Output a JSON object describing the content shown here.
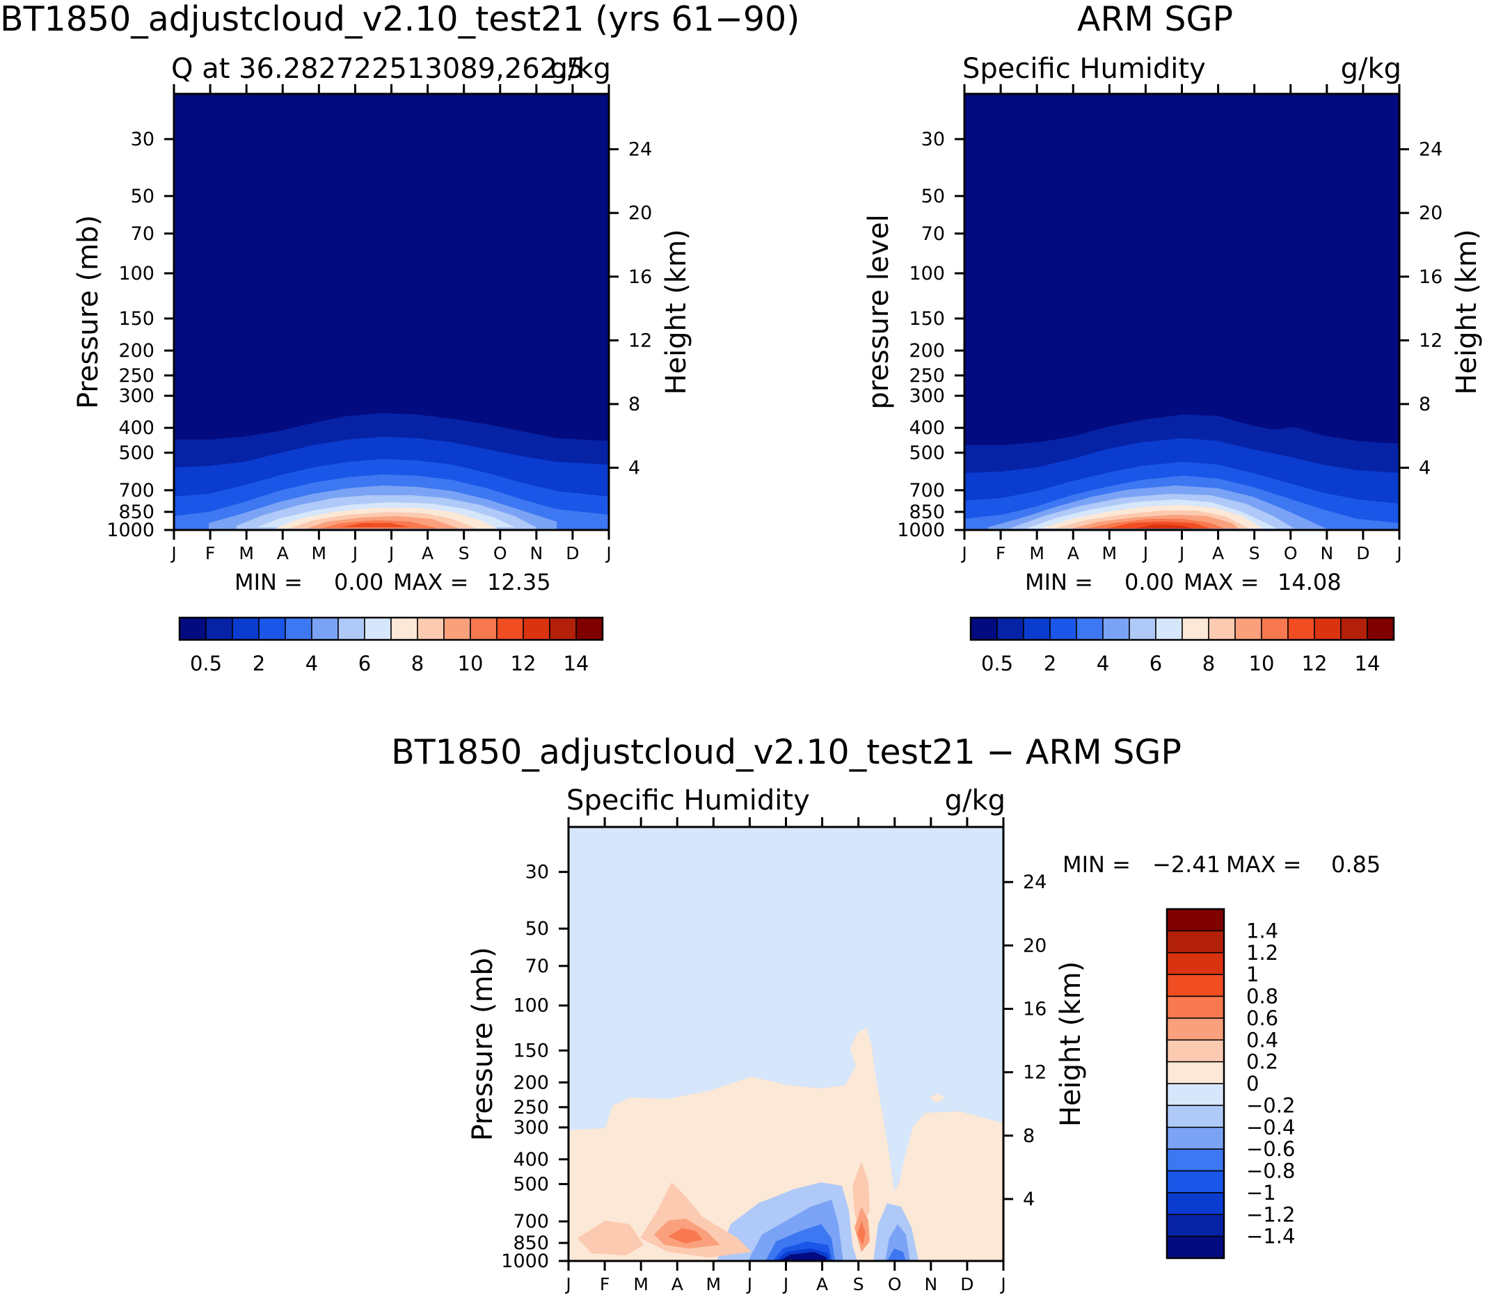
{
  "chart_data": [
    {
      "type": "heatmap",
      "title": "BT1850_adjustcloud_v2.10_test21 (yrs 61−90)",
      "subtitle_left": "Q at 36.282722513089,262.5",
      "units": "g/kg",
      "ylabel": "Pressure (mb)",
      "ylabel_right": "Height (km)",
      "x_ticks": [
        "J",
        "F",
        "M",
        "A",
        "M",
        "J",
        "J",
        "A",
        "S",
        "O",
        "N",
        "D",
        "J"
      ],
      "y_ticks": [
        "30",
        "50",
        "70",
        "100",
        "150",
        "200",
        "250",
        "300",
        "400",
        "500",
        "700",
        "850",
        "1000"
      ],
      "y2_ticks": [
        "24",
        "20",
        "16",
        "12",
        "8",
        "4"
      ],
      "min_label": "MIN =",
      "min_value": "0.00",
      "max_label": "MAX =",
      "max_value": "12.35",
      "colorbar": {
        "levels": [
          0.5,
          1,
          2,
          3,
          4,
          5,
          6,
          7,
          8,
          9,
          10,
          11,
          12,
          13,
          14
        ],
        "labels": [
          "0.5",
          "2",
          "4",
          "6",
          "8",
          "10",
          "12",
          "14"
        ]
      },
      "max_month_index": 5
    },
    {
      "type": "heatmap",
      "title": "ARM SGP",
      "subtitle_left": "Specific Humidity",
      "units": "g/kg",
      "ylabel": "pressure level",
      "ylabel_right": "Height (km)",
      "x_ticks": [
        "J",
        "F",
        "M",
        "A",
        "M",
        "J",
        "J",
        "A",
        "S",
        "O",
        "N",
        "D",
        "J"
      ],
      "y_ticks": [
        "30",
        "50",
        "70",
        "100",
        "150",
        "200",
        "250",
        "300",
        "400",
        "500",
        "700",
        "850",
        "1000"
      ],
      "y2_ticks": [
        "24",
        "20",
        "16",
        "12",
        "8",
        "4"
      ],
      "min_label": "MIN =",
      "min_value": "0.00",
      "max_label": "MAX =",
      "max_value": "14.08",
      "colorbar": {
        "levels": [
          0.5,
          1,
          2,
          3,
          4,
          5,
          6,
          7,
          8,
          9,
          10,
          11,
          12,
          13,
          14
        ],
        "labels": [
          "0.5",
          "2",
          "4",
          "6",
          "8",
          "10",
          "12",
          "14"
        ]
      },
      "max_month_index": 6
    },
    {
      "type": "heatmap",
      "title": "BT1850_adjustcloud_v2.10_test21 − ARM SGP",
      "subtitle_left": "Specific Humidity",
      "units": "g/kg",
      "ylabel": "Pressure (mb)",
      "ylabel_right": "Height (km)",
      "x_ticks": [
        "J",
        "F",
        "M",
        "A",
        "M",
        "J",
        "J",
        "A",
        "S",
        "O",
        "N",
        "D",
        "J"
      ],
      "y_ticks": [
        "30",
        "50",
        "70",
        "100",
        "150",
        "200",
        "250",
        "300",
        "400",
        "500",
        "700",
        "850",
        "1000"
      ],
      "y2_ticks": [
        "24",
        "20",
        "16",
        "12",
        "8",
        "4"
      ],
      "min_label": "MIN =",
      "min_value": "−2.41",
      "max_label": "MAX =",
      "max_value": "0.85",
      "colorbar": {
        "levels": [
          -1.4,
          -1.2,
          -1,
          -0.8,
          -0.6,
          -0.4,
          -0.2,
          0,
          0.2,
          0.4,
          0.6,
          0.8,
          1,
          1.2,
          1.4
        ],
        "labels": [
          "1.4",
          "1.2",
          "1",
          "0.8",
          "0.6",
          "0.4",
          "0.2",
          "0",
          "−0.2",
          "−0.4",
          "−0.6",
          "−0.8",
          "−1",
          "−1.2",
          "−1.4"
        ]
      }
    }
  ],
  "colors": {
    "abs_scale": [
      "#030b80",
      "#0623a6",
      "#0a3ccf",
      "#1a57e8",
      "#3d78f2",
      "#7ba3f5",
      "#afc9f8",
      "#d6e6fb",
      "#fce8d6",
      "#fccab0",
      "#faa07c",
      "#f8794f",
      "#f04d22",
      "#d93310",
      "#b2200a",
      "#800000"
    ],
    "diff_scale": [
      "#030b80",
      "#0623a6",
      "#0a3ccf",
      "#1a57e8",
      "#3d78f2",
      "#7ba3f5",
      "#afc9f8",
      "#d6e6fb",
      "#fce8d6",
      "#fccab0",
      "#faa07c",
      "#f8794f",
      "#f04d22",
      "#d93310",
      "#b2200a",
      "#800000"
    ]
  }
}
